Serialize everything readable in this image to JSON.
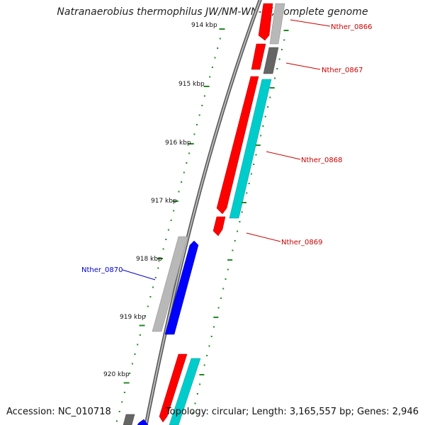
{
  "title": "Natranaerobius thermophilus JW/NM-WN-LF, complete genome",
  "footer": {
    "accession": "Accession: NC_010718",
    "topology": "Topology: circular; Length: 3,165,557 bp; Genes: 2,946"
  },
  "colors": {
    "forward_gene": "#ff0000",
    "forward_gene_alt": "#00cccc",
    "reverse_gene": "#0000ff",
    "gray_gene": "#b8b8b8",
    "dark_gene": "#666666",
    "tick": "#228822",
    "backbone": "#8c8c8c",
    "label_red": "#cc0000",
    "label_blue": "#0000cc"
  },
  "ticks": [
    {
      "label": "914 kbp"
    },
    {
      "label": "915 kbp"
    },
    {
      "label": "916 kbp"
    },
    {
      "label": "917 kbp"
    },
    {
      "label": "918 kbp"
    },
    {
      "label": "919 kbp"
    },
    {
      "label": "920 kbp"
    }
  ],
  "gene_labels": [
    {
      "name": "Nther_0866",
      "strand": "forward"
    },
    {
      "name": "Nther_0867",
      "strand": "forward"
    },
    {
      "name": "Nther_0868",
      "strand": "forward"
    },
    {
      "name": "Nther_0869",
      "strand": "forward"
    },
    {
      "name": "Nther_0870",
      "strand": "reverse"
    }
  ]
}
